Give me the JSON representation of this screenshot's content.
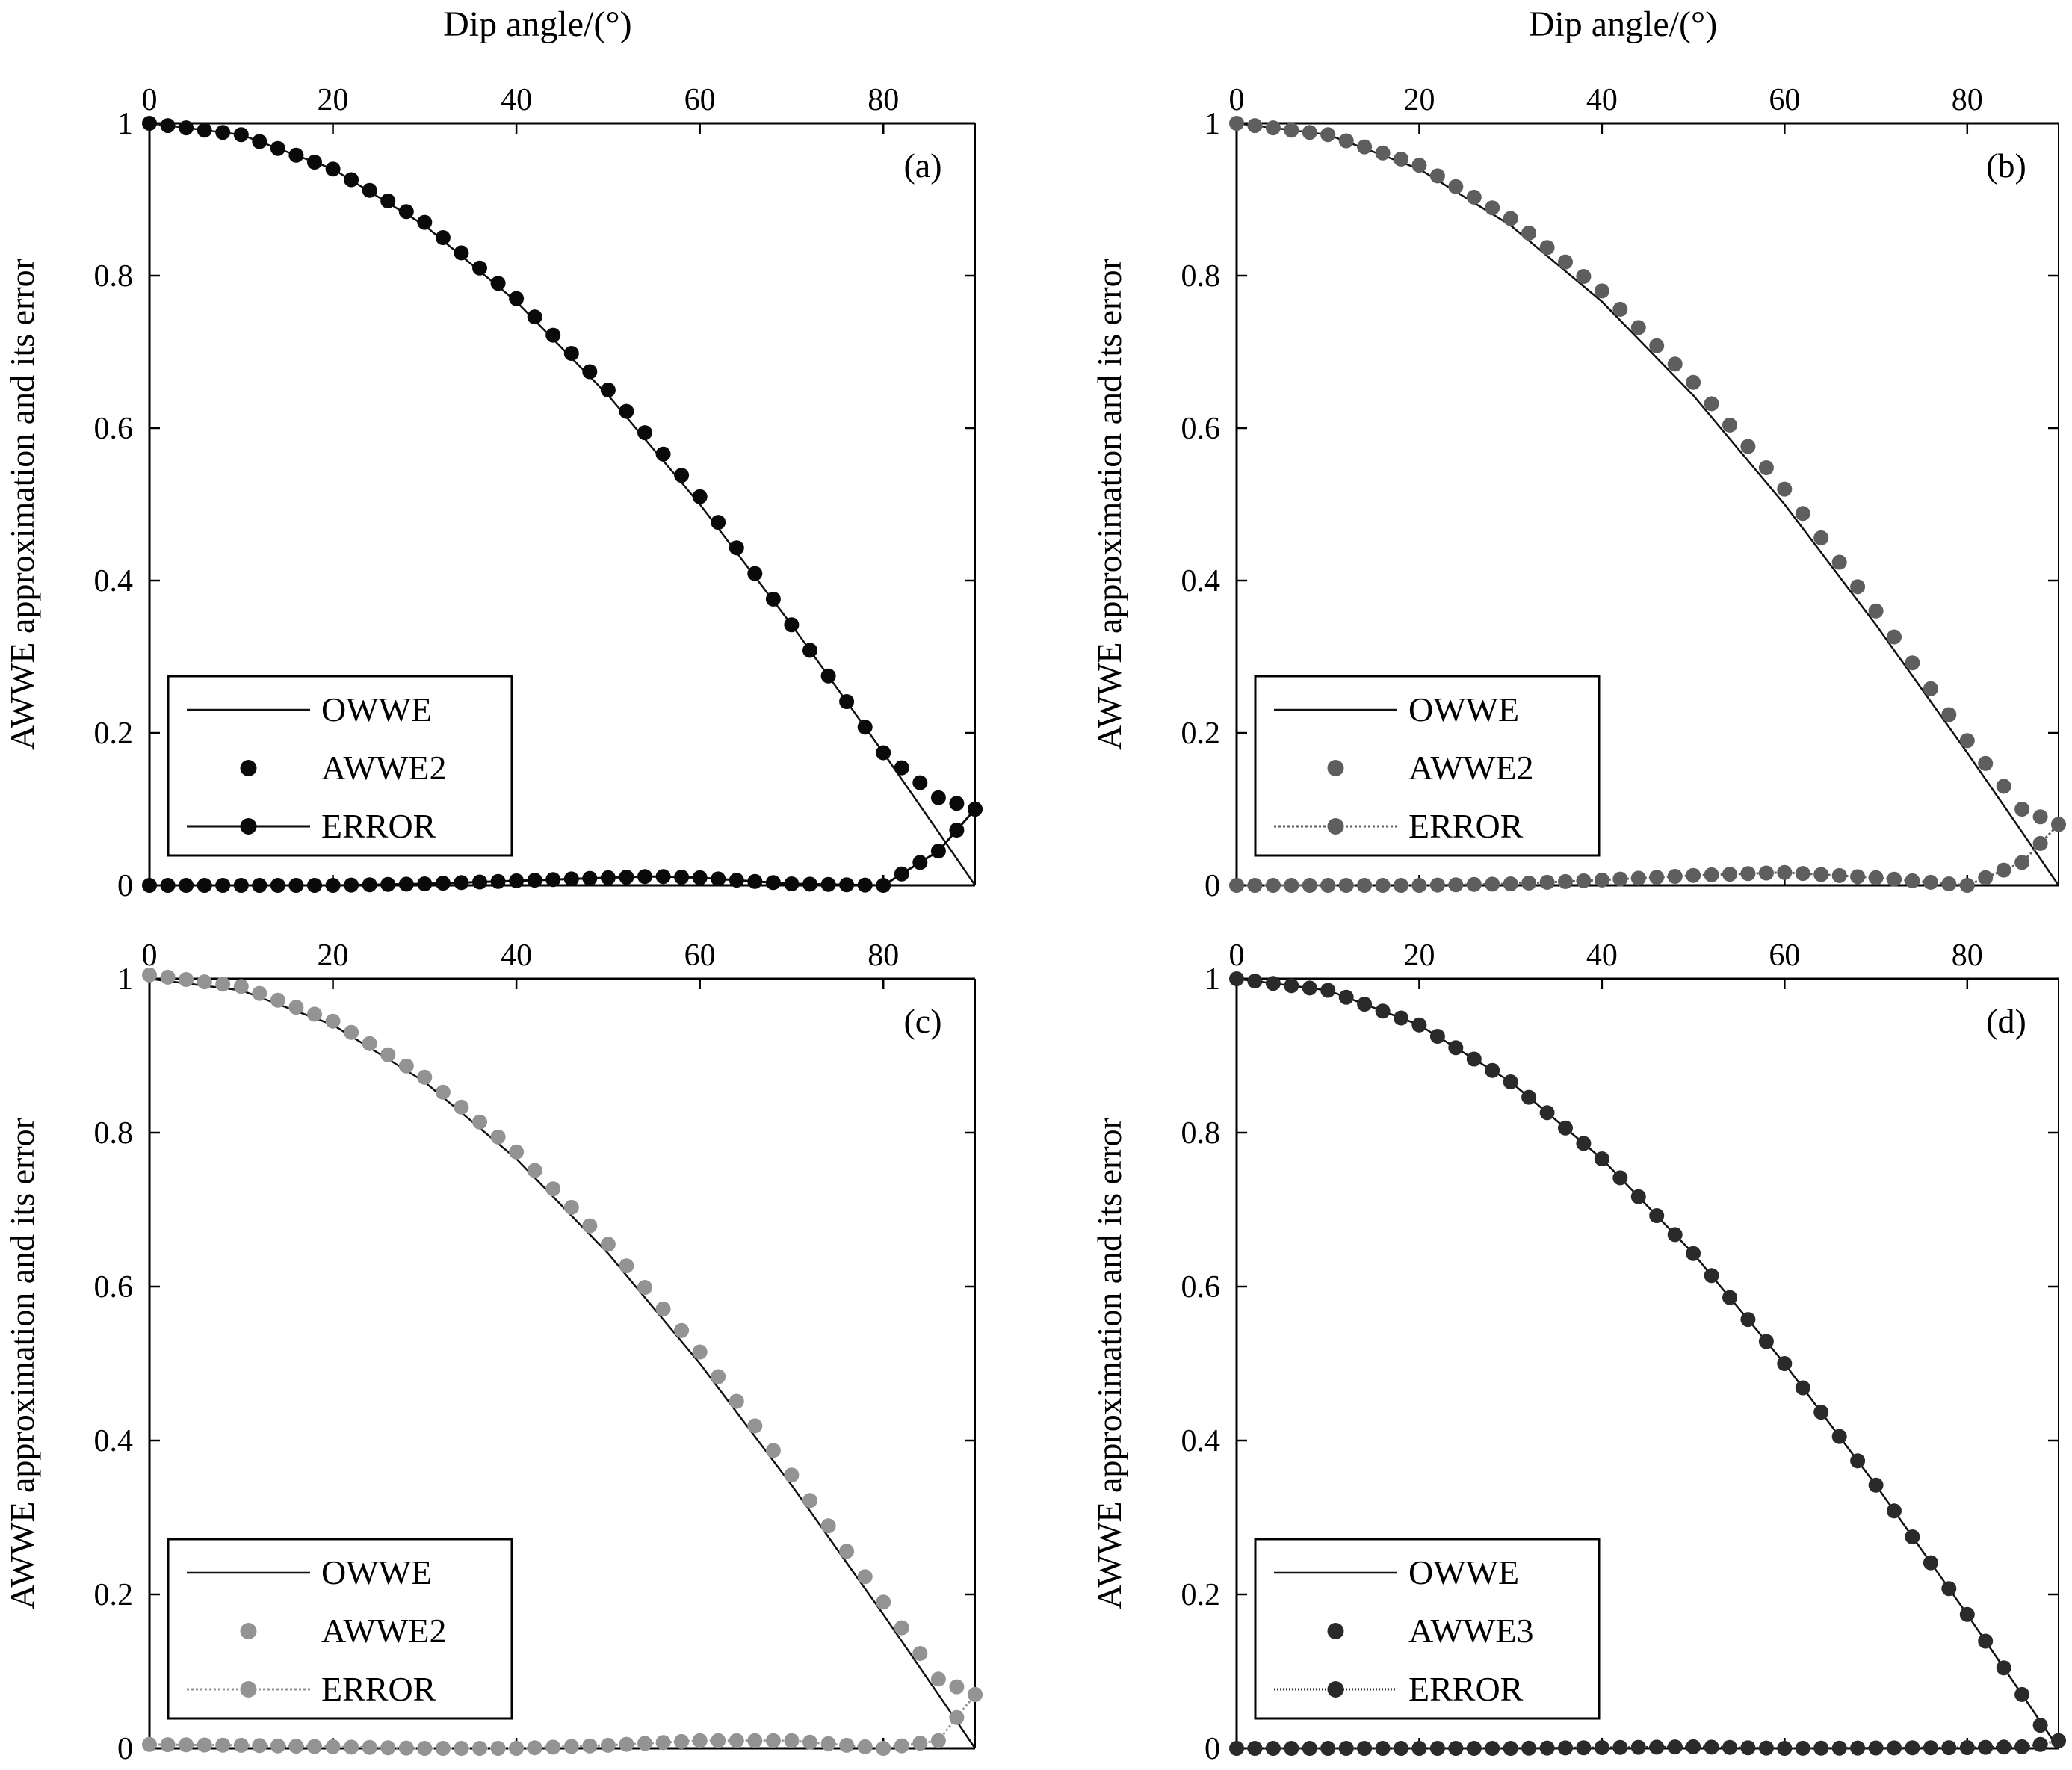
{
  "figure": {
    "top_xlabel_a": "Dip angle/(°)",
    "top_xlabel_b": "Dip angle/(°)"
  },
  "chart_data": [
    {
      "id": "a",
      "type": "line",
      "panel_label": "(a)",
      "xlabel": "Dip angle/(°)",
      "ylabel": "AWWE approximation and its error",
      "xlim": [
        0,
        90
      ],
      "ylim": [
        0,
        1
      ],
      "xticks": [
        0,
        20,
        40,
        60,
        80
      ],
      "yticks": [
        0,
        0.2,
        0.4,
        0.6,
        0.8,
        1
      ],
      "ytick_labels": [
        "0",
        "0.2",
        "0.4",
        "0.6",
        "0.8",
        "1"
      ],
      "grid": false,
      "legend_position": "bottom-left",
      "colors": {
        "owwe": "#111111",
        "approx": "#0a0a0a",
        "error": "#0a0a0a"
      },
      "legend": [
        {
          "label": "OWWE",
          "kind": "line"
        },
        {
          "label": "AWWE2",
          "kind": "dot"
        },
        {
          "label": "ERROR",
          "kind": "line-dot",
          "dash": ""
        }
      ],
      "series": [
        {
          "name": "OWWE",
          "x": [
            0,
            10,
            20,
            30,
            40,
            50,
            60,
            70,
            80,
            86,
            90
          ],
          "y": [
            1,
            0.985,
            0.94,
            0.866,
            0.766,
            0.643,
            0.5,
            0.342,
            0.174,
            0.07,
            0
          ]
        },
        {
          "name": "AWWE2",
          "x": [
            0,
            10,
            20,
            30,
            40,
            50,
            60,
            70,
            80,
            86,
            90
          ],
          "y": [
            1,
            0.985,
            0.94,
            0.87,
            0.77,
            0.65,
            0.51,
            0.342,
            0.174,
            0.115,
            0.1
          ]
        },
        {
          "name": "ERROR",
          "x": [
            0,
            10,
            20,
            30,
            40,
            50,
            55,
            60,
            70,
            80,
            86,
            90
          ],
          "y": [
            0,
            0,
            0,
            0.002,
            0.006,
            0.01,
            0.012,
            0.01,
            0.002,
            0,
            0.045,
            0.1
          ]
        }
      ]
    },
    {
      "id": "b",
      "type": "line",
      "panel_label": "(b)",
      "xlabel": "Dip angle/(°)",
      "ylabel": "AWWE approximation and its error",
      "xlim": [
        0,
        90
      ],
      "ylim": [
        0,
        1
      ],
      "xticks": [
        0,
        20,
        40,
        60,
        80
      ],
      "yticks": [
        0,
        0.2,
        0.4,
        0.6,
        0.8,
        1
      ],
      "ytick_labels": [
        "0",
        "0.2",
        "0.4",
        "0.6",
        "0.8",
        "1"
      ],
      "grid": false,
      "legend_position": "bottom-left",
      "colors": {
        "owwe": "#111111",
        "approx": "#5e5e5e",
        "error": "#5e5e5e"
      },
      "legend": [
        {
          "label": "OWWE",
          "kind": "line"
        },
        {
          "label": "AWWE2",
          "kind": "dot"
        },
        {
          "label": "ERROR",
          "kind": "line-dot",
          "dash": "3,3"
        }
      ],
      "series": [
        {
          "name": "OWWE",
          "x": [
            0,
            10,
            20,
            30,
            40,
            50,
            60,
            70,
            80,
            86,
            90
          ],
          "y": [
            1,
            0.985,
            0.94,
            0.866,
            0.766,
            0.643,
            0.5,
            0.342,
            0.174,
            0.07,
            0
          ]
        },
        {
          "name": "AWWE2",
          "x": [
            0,
            10,
            20,
            30,
            40,
            50,
            60,
            70,
            80,
            86,
            90
          ],
          "y": [
            1,
            0.985,
            0.945,
            0.875,
            0.78,
            0.66,
            0.52,
            0.36,
            0.19,
            0.1,
            0.08
          ]
        },
        {
          "name": "ERROR",
          "x": [
            0,
            10,
            20,
            30,
            40,
            50,
            60,
            70,
            80,
            86,
            90
          ],
          "y": [
            0,
            0,
            0,
            0.002,
            0.007,
            0.013,
            0.017,
            0.01,
            0,
            0.03,
            0.08
          ]
        }
      ]
    },
    {
      "id": "c",
      "type": "line",
      "panel_label": "(c)",
      "xlabel": "",
      "ylabel": "AWWE approximation and its error",
      "xlim": [
        0,
        90
      ],
      "ylim": [
        0,
        1
      ],
      "xticks": [
        0,
        20,
        40,
        60,
        80
      ],
      "yticks": [
        0,
        0.2,
        0.4,
        0.6,
        0.8,
        1
      ],
      "ytick_labels": [
        "0",
        "0.2",
        "0.4",
        "0.6",
        "0.8",
        "1"
      ],
      "grid": false,
      "legend_position": "bottom-left",
      "colors": {
        "owwe": "#111111",
        "approx": "#939393",
        "error": "#939393"
      },
      "legend": [
        {
          "label": "OWWE",
          "kind": "line"
        },
        {
          "label": "AWWE2",
          "kind": "dot"
        },
        {
          "label": "ERROR",
          "kind": "line-dot",
          "dash": "3,3"
        }
      ],
      "series": [
        {
          "name": "OWWE",
          "x": [
            0,
            10,
            20,
            30,
            40,
            50,
            60,
            70,
            80,
            86,
            90
          ],
          "y": [
            1,
            0.985,
            0.94,
            0.866,
            0.766,
            0.643,
            0.5,
            0.342,
            0.174,
            0.07,
            0
          ]
        },
        {
          "name": "AWWE2",
          "x": [
            0,
            10,
            20,
            30,
            40,
            50,
            60,
            70,
            80,
            86,
            90
          ],
          "y": [
            1.005,
            0.99,
            0.945,
            0.872,
            0.775,
            0.655,
            0.515,
            0.355,
            0.19,
            0.09,
            0.07
          ]
        },
        {
          "name": "ERROR",
          "x": [
            0,
            10,
            20,
            30,
            40,
            50,
            60,
            70,
            80,
            86,
            90
          ],
          "y": [
            0.005,
            0.004,
            0.002,
            0,
            0,
            0.004,
            0.01,
            0.01,
            0,
            0.01,
            0.07
          ]
        }
      ]
    },
    {
      "id": "d",
      "type": "line",
      "panel_label": "(d)",
      "xlabel": "",
      "ylabel": "AWWE approximation and its error",
      "xlim": [
        0,
        90
      ],
      "ylim": [
        0,
        1
      ],
      "xticks": [
        0,
        20,
        40,
        60,
        80
      ],
      "yticks": [
        0,
        0.2,
        0.4,
        0.6,
        0.8,
        1
      ],
      "ytick_labels": [
        "0",
        "0.2",
        "0.4",
        "0.6",
        "0.8",
        "1"
      ],
      "grid": false,
      "legend_position": "bottom-left",
      "colors": {
        "owwe": "#111111",
        "approx": "#2a2a2a",
        "error": "#2a2a2a"
      },
      "legend": [
        {
          "label": "OWWE",
          "kind": "line"
        },
        {
          "label": "AWWE3",
          "kind": "dot"
        },
        {
          "label": "ERROR",
          "kind": "line-dot",
          "dash": "2,2"
        }
      ],
      "series": [
        {
          "name": "OWWE",
          "x": [
            0,
            10,
            20,
            30,
            40,
            50,
            60,
            70,
            80,
            86,
            90
          ],
          "y": [
            1,
            0.985,
            0.94,
            0.866,
            0.766,
            0.643,
            0.5,
            0.342,
            0.174,
            0.07,
            0
          ]
        },
        {
          "name": "AWWE3",
          "x": [
            0,
            10,
            20,
            30,
            40,
            50,
            60,
            70,
            80,
            86,
            88,
            90
          ],
          "y": [
            1,
            0.985,
            0.94,
            0.866,
            0.766,
            0.643,
            0.5,
            0.342,
            0.174,
            0.07,
            0.03,
            0.01
          ]
        },
        {
          "name": "ERROR",
          "x": [
            0,
            30,
            50,
            60,
            80,
            86,
            88,
            90
          ],
          "y": [
            0,
            0,
            0.002,
            0,
            0.001,
            0.002,
            0.005,
            0.01
          ]
        }
      ]
    }
  ]
}
